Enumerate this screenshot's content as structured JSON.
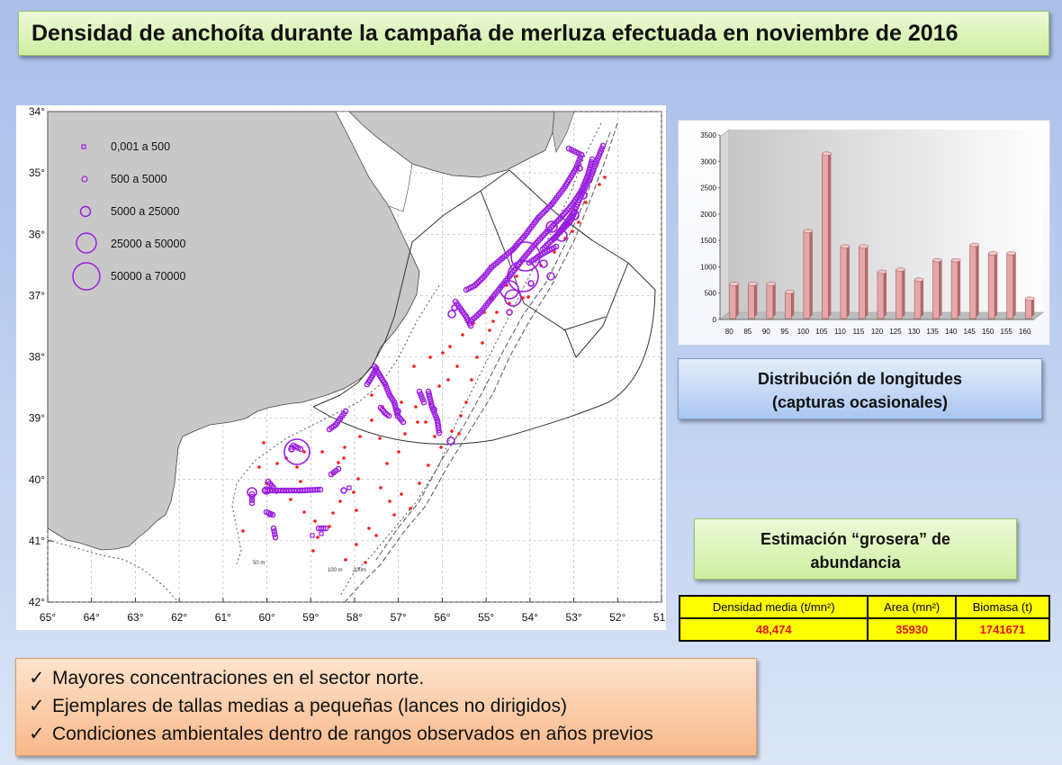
{
  "title": "Densidad de anchoíta durante la campaña de merluza efectuada en noviembre de 2016",
  "map": {
    "lat_labels": [
      "34°",
      "35°",
      "36°",
      "37°",
      "38°",
      "39°",
      "40°",
      "41°",
      "42°"
    ],
    "lon_labels": [
      "65°",
      "64°",
      "63°",
      "62°",
      "61°",
      "60°",
      "59°",
      "58°",
      "57°",
      "56°",
      "55°",
      "54°",
      "53°",
      "52°",
      "51°"
    ],
    "legend": [
      {
        "label": "0,001  a  500"
      },
      {
        "label": "500  a  5000"
      },
      {
        "label": "5000  a  25000"
      },
      {
        "label": "25000  a  50000"
      },
      {
        "label": "50000  a  70000"
      }
    ],
    "depth_labels": [
      "50 m",
      "100 m",
      "200m"
    ],
    "land_color": "#c8c8c8",
    "marker_color": "#9a1ee0",
    "station_color": "#ff1a1a"
  },
  "chart_data": {
    "type": "bar",
    "categories": [
      "80",
      "85",
      "90",
      "95",
      "100",
      "105",
      "110",
      "115",
      "120",
      "125",
      "130",
      "135",
      "140",
      "145",
      "150",
      "155",
      "160"
    ],
    "values": [
      650,
      650,
      650,
      500,
      1650,
      3120,
      1360,
      1360,
      880,
      920,
      730,
      1100,
      1100,
      1390,
      1230,
      1230,
      370
    ],
    "ylim": [
      0,
      3500
    ],
    "yticks": [
      "0",
      "500",
      "1000",
      "1500",
      "2000",
      "2500",
      "3000",
      "3500"
    ],
    "bar_color": "#e8a7a7",
    "title": "Distribución de longitudes",
    "subtitle": "(capturas ocasionales)"
  },
  "estimate": {
    "title_line1": "Estimación “grosera” de",
    "title_line2": "abundancia",
    "table_headers": [
      "Densidad media (t/mn²)",
      "Area (mn²)",
      "Biomasa (t)"
    ],
    "table_values": [
      "48,474",
      "35930",
      "1741671"
    ]
  },
  "notes": [
    {
      "check": "✓",
      "text": "Mayores concentraciones en el sector norte."
    },
    {
      "check": "✓",
      "text": "Ejemplares de tallas medias a pequeñas (lances no dirigidos)"
    },
    {
      "check": "✓",
      "text": "Condiciones ambientales dentro de rangos observados en años previos"
    }
  ]
}
